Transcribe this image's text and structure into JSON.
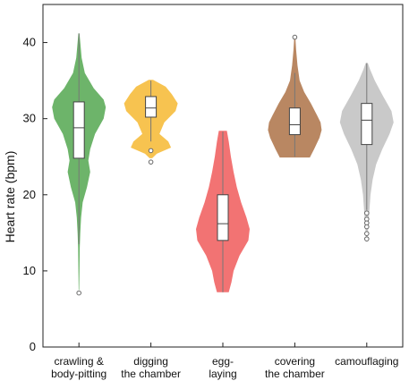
{
  "chart_data": {
    "type": "violin",
    "ylabel": "Heart rate (bpm)",
    "ylim": [
      0,
      45
    ],
    "yticks": [
      0,
      10,
      20,
      30,
      40
    ],
    "grid": false,
    "legend": "none",
    "categories": [
      {
        "lines": [
          "crawling &",
          "body-pitting"
        ],
        "name": "crawling & body-pitting"
      },
      {
        "lines": [
          "digging",
          "the chamber"
        ],
        "name": "digging the chamber"
      },
      {
        "lines": [
          "egg-",
          "laying"
        ],
        "name": "egg-laying"
      },
      {
        "lines": [
          "covering",
          "the chamber"
        ],
        "name": "covering the chamber"
      },
      {
        "lines": [
          "camouflaging"
        ],
        "name": "camouflaging"
      }
    ],
    "series": [
      {
        "color": "#6db46a",
        "density": [
          [
            7.5,
            0.01
          ],
          [
            10,
            0.02
          ],
          [
            13,
            0.03
          ],
          [
            15,
            0.05
          ],
          [
            17,
            0.08
          ],
          [
            19,
            0.14
          ],
          [
            21,
            0.3
          ],
          [
            23,
            0.42
          ],
          [
            24.5,
            0.35
          ],
          [
            26,
            0.42
          ],
          [
            28,
            0.6
          ],
          [
            30,
            0.92
          ],
          [
            31.5,
            1.0
          ],
          [
            32.5,
            0.92
          ],
          [
            34,
            0.55
          ],
          [
            36,
            0.22
          ],
          [
            38,
            0.1
          ],
          [
            40,
            0.05
          ],
          [
            41.2,
            0.02
          ]
        ],
        "box": {
          "q1": 24.8,
          "median": 28.8,
          "q3": 32.2,
          "whisker_low": 13.5,
          "whisker_high": 41.2
        },
        "outliers": [
          7.1
        ]
      },
      {
        "color": "#f7c350",
        "density": [
          [
            24.8,
            0.05
          ],
          [
            25.4,
            0.22
          ],
          [
            26.2,
            0.75
          ],
          [
            27,
            0.65
          ],
          [
            28,
            0.32
          ],
          [
            29.5,
            0.5
          ],
          [
            31,
            0.92
          ],
          [
            32,
            1.0
          ],
          [
            33.2,
            0.78
          ],
          [
            34.2,
            0.55
          ],
          [
            35.1,
            0.08
          ]
        ],
        "box": {
          "q1": 30.2,
          "median": 31.4,
          "q3": 32.9,
          "whisker_low": 27.0,
          "whisker_high": 35.0
        },
        "outliers": [
          25.8,
          24.3
        ]
      },
      {
        "color": "#f27373",
        "density": [
          [
            7.2,
            0.22
          ],
          [
            8.5,
            0.32
          ],
          [
            10,
            0.4
          ],
          [
            12,
            0.62
          ],
          [
            14,
            0.95
          ],
          [
            15.5,
            1.0
          ],
          [
            17,
            0.88
          ],
          [
            19,
            0.68
          ],
          [
            21,
            0.52
          ],
          [
            23,
            0.4
          ],
          [
            25,
            0.3
          ],
          [
            27,
            0.22
          ],
          [
            28.4,
            0.15
          ]
        ],
        "box": {
          "q1": 14.0,
          "median": 16.2,
          "q3": 20.0,
          "whisker_low": 7.2,
          "whisker_high": 28.3
        },
        "outliers": []
      },
      {
        "color": "#b98762",
        "density": [
          [
            24.9,
            0.56
          ],
          [
            26,
            0.72
          ],
          [
            27.5,
            0.92
          ],
          [
            28.5,
            1.0
          ],
          [
            29.5,
            0.96
          ],
          [
            30.5,
            0.82
          ],
          [
            32,
            0.6
          ],
          [
            33.5,
            0.35
          ],
          [
            35,
            0.18
          ],
          [
            37,
            0.1
          ],
          [
            39,
            0.05
          ],
          [
            40.7,
            0.02
          ]
        ],
        "box": {
          "q1": 27.9,
          "median": 29.2,
          "q3": 31.4,
          "whisker_low": 25.0,
          "whisker_high": 36.0
        },
        "outliers": [
          40.7
        ]
      },
      {
        "color": "#c9c9c9",
        "density": [
          [
            14.2,
            0.03
          ],
          [
            16,
            0.06
          ],
          [
            18,
            0.1
          ],
          [
            20,
            0.14
          ],
          [
            22,
            0.22
          ],
          [
            24,
            0.35
          ],
          [
            26,
            0.58
          ],
          [
            28,
            0.85
          ],
          [
            29.5,
            1.0
          ],
          [
            31,
            0.92
          ],
          [
            33,
            0.6
          ],
          [
            35,
            0.3
          ],
          [
            36.5,
            0.12
          ],
          [
            37.3,
            0.04
          ]
        ],
        "box": {
          "q1": 26.6,
          "median": 29.8,
          "q3": 32.0,
          "whisker_low": 18.0,
          "whisker_high": 37.3
        },
        "outliers": [
          17.6,
          16.8,
          16.3,
          15.8,
          14.9,
          14.2
        ]
      }
    ]
  }
}
